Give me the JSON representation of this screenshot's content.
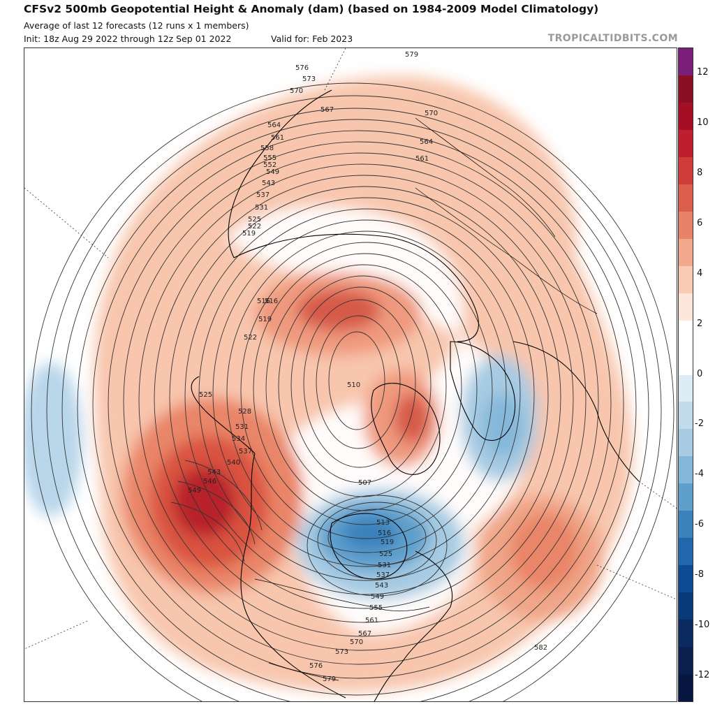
{
  "header": {
    "title": "CFSv2 500mb Geopotential Height & Anomaly (dam) (based on 1984-2009 Model Climatology)",
    "subtitle": "Average of last 12 forecasts (12 runs x 1 members)",
    "init": "Init: 18z Aug 29 2022 through 12z Sep 01 2022",
    "valid": "Valid for: Feb 2023",
    "brand": "TROPICALTIDBITS.COM"
  },
  "colorbar": {
    "ticks": [
      "12",
      "10",
      "8",
      "6",
      "4",
      "2",
      "0",
      "-2",
      "-4",
      "-6",
      "-8",
      "-10",
      "-12"
    ],
    "colors": [
      "#7b1e7a",
      "#8a0f24",
      "#a50f25",
      "#be1e2d",
      "#cf3d3a",
      "#dc5e4f",
      "#e8836b",
      "#f2a88c",
      "#f9cbb4",
      "#fde7dc",
      "#ffffff",
      "#ffffff",
      "#ddebf5",
      "#c2dbec",
      "#a6cbe3",
      "#84b7d9",
      "#5e9fcc",
      "#3b82bd",
      "#2167ad",
      "#0d4c94",
      "#083a7a",
      "#0a2a60",
      "#0b1f4f",
      "#081742"
    ]
  },
  "contour_labels": {
    "values": [
      "579",
      "576",
      "573",
      "570",
      "567",
      "564",
      "561",
      "558",
      "555",
      "552",
      "549",
      "543",
      "537",
      "531",
      "525",
      "522",
      "519",
      "516",
      "510",
      "507",
      "513",
      "516",
      "519",
      "525",
      "531",
      "537",
      "543",
      "549",
      "555",
      "561",
      "567",
      "570",
      "573",
      "576",
      "579",
      "582",
      "525",
      "528",
      "531",
      "534",
      "537",
      "540",
      "543",
      "546",
      "549",
      "570",
      "564",
      "561",
      "522",
      "519",
      "516"
    ]
  },
  "anomaly_centers": [
    {
      "name": "alaska-yukon-positive",
      "sign": "positive",
      "level": 8
    },
    {
      "name": "siberia-arctic-positive",
      "sign": "positive",
      "level": 6
    },
    {
      "name": "greenland-positive",
      "sign": "positive",
      "level": 6
    },
    {
      "name": "hudson-bay-negative",
      "sign": "negative",
      "level": -6
    },
    {
      "name": "scandinavia-negative",
      "sign": "negative",
      "level": -4
    },
    {
      "name": "pacific-negative",
      "sign": "negative",
      "level": -2
    },
    {
      "name": "atlantic-positive",
      "sign": "positive",
      "level": 4
    },
    {
      "name": "europe-positive",
      "sign": "positive",
      "level": 2
    }
  ]
}
